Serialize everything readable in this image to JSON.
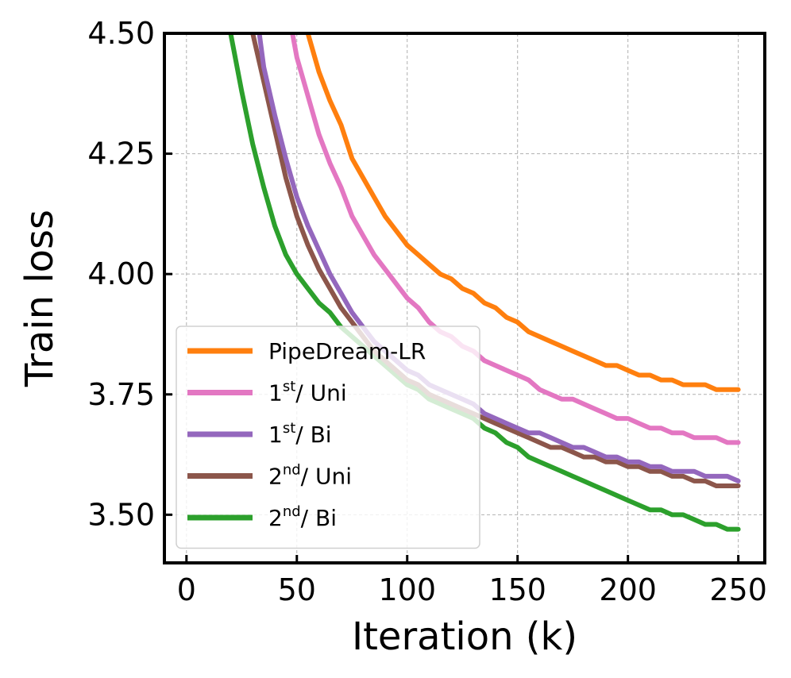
{
  "chart_data": {
    "type": "line",
    "title": "",
    "xlabel": "Iteration (k)",
    "ylabel": "Train loss",
    "xlim": [
      -10,
      262
    ],
    "ylim": [
      3.4,
      4.5
    ],
    "xticks": [
      0,
      50,
      100,
      150,
      200,
      250
    ],
    "xtick_labels": [
      "0",
      "50",
      "100",
      "150",
      "200",
      "250"
    ],
    "yticks": [
      3.5,
      3.75,
      4.0,
      4.25,
      4.5
    ],
    "ytick_labels": [
      "3.50",
      "3.75",
      "4.00",
      "4.25",
      "4.50"
    ],
    "grid": true,
    "legend_position": "lower-left",
    "series": [
      {
        "name": "PipeDream-LR",
        "legend": {
          "base": "PipeDream-LR",
          "sup": "",
          "suffix": ""
        },
        "color": "#ff7f0e",
        "x": [
          55,
          60,
          65,
          70,
          75,
          80,
          85,
          90,
          95,
          100,
          105,
          110,
          115,
          120,
          125,
          130,
          135,
          140,
          145,
          150,
          155,
          160,
          165,
          170,
          175,
          180,
          185,
          190,
          195,
          200,
          205,
          210,
          215,
          220,
          225,
          230,
          235,
          240,
          245,
          250
        ],
        "y": [
          4.5,
          4.42,
          4.36,
          4.31,
          4.24,
          4.2,
          4.16,
          4.12,
          4.09,
          4.06,
          4.04,
          4.02,
          4.0,
          3.99,
          3.97,
          3.96,
          3.94,
          3.93,
          3.91,
          3.9,
          3.88,
          3.87,
          3.86,
          3.85,
          3.84,
          3.83,
          3.82,
          3.81,
          3.81,
          3.8,
          3.79,
          3.79,
          3.78,
          3.78,
          3.77,
          3.77,
          3.77,
          3.76,
          3.76,
          3.76
        ]
      },
      {
        "name": "1st/ Uni",
        "legend": {
          "base": "1",
          "sup": "st",
          "suffix": "/ Uni"
        },
        "color": "#e377c2",
        "x": [
          48,
          50,
          55,
          60,
          65,
          70,
          75,
          80,
          85,
          90,
          95,
          100,
          105,
          110,
          115,
          120,
          125,
          130,
          135,
          140,
          145,
          150,
          155,
          160,
          165,
          170,
          175,
          180,
          185,
          190,
          195,
          200,
          205,
          210,
          215,
          220,
          225,
          230,
          235,
          240,
          245,
          250
        ],
        "y": [
          4.5,
          4.45,
          4.37,
          4.29,
          4.23,
          4.18,
          4.12,
          4.08,
          4.04,
          4.01,
          3.98,
          3.95,
          3.93,
          3.9,
          3.88,
          3.87,
          3.85,
          3.84,
          3.82,
          3.81,
          3.8,
          3.79,
          3.78,
          3.76,
          3.75,
          3.74,
          3.74,
          3.73,
          3.72,
          3.71,
          3.7,
          3.7,
          3.69,
          3.68,
          3.68,
          3.67,
          3.67,
          3.66,
          3.66,
          3.66,
          3.65,
          3.65
        ]
      },
      {
        "name": "1st/ Bi",
        "legend": {
          "base": "1",
          "sup": "st",
          "suffix": "/ Bi"
        },
        "color": "#9467bd",
        "x": [
          33,
          35,
          40,
          45,
          50,
          55,
          60,
          65,
          70,
          75,
          80,
          85,
          90,
          95,
          100,
          105,
          110,
          115,
          120,
          125,
          130,
          135,
          140,
          145,
          150,
          155,
          160,
          165,
          170,
          175,
          180,
          185,
          190,
          195,
          200,
          205,
          210,
          215,
          220,
          225,
          230,
          235,
          240,
          245,
          250
        ],
        "y": [
          4.5,
          4.43,
          4.33,
          4.24,
          4.16,
          4.1,
          4.05,
          4.0,
          3.96,
          3.92,
          3.89,
          3.86,
          3.84,
          3.82,
          3.8,
          3.79,
          3.77,
          3.76,
          3.75,
          3.74,
          3.73,
          3.71,
          3.7,
          3.69,
          3.68,
          3.67,
          3.67,
          3.66,
          3.65,
          3.64,
          3.64,
          3.63,
          3.62,
          3.62,
          3.61,
          3.61,
          3.6,
          3.6,
          3.59,
          3.59,
          3.59,
          3.58,
          3.58,
          3.58,
          3.57
        ]
      },
      {
        "name": "2nd/ Uni",
        "legend": {
          "base": "2",
          "sup": "nd",
          "suffix": "/ Uni"
        },
        "color": "#8c564b",
        "x": [
          30,
          35,
          40,
          45,
          50,
          55,
          60,
          65,
          70,
          75,
          80,
          85,
          90,
          95,
          100,
          105,
          110,
          115,
          120,
          125,
          130,
          135,
          140,
          145,
          150,
          155,
          160,
          165,
          170,
          175,
          180,
          185,
          190,
          195,
          200,
          205,
          210,
          215,
          220,
          225,
          230,
          235,
          240,
          245,
          250
        ],
        "y": [
          4.5,
          4.4,
          4.3,
          4.2,
          4.12,
          4.06,
          4.01,
          3.97,
          3.93,
          3.9,
          3.87,
          3.84,
          3.82,
          3.8,
          3.78,
          3.77,
          3.75,
          3.74,
          3.73,
          3.72,
          3.71,
          3.7,
          3.69,
          3.68,
          3.67,
          3.66,
          3.65,
          3.64,
          3.64,
          3.63,
          3.62,
          3.62,
          3.61,
          3.61,
          3.6,
          3.6,
          3.59,
          3.59,
          3.58,
          3.58,
          3.57,
          3.57,
          3.56,
          3.56,
          3.56
        ]
      },
      {
        "name": "2nd/ Bi",
        "legend": {
          "base": "2",
          "sup": "nd",
          "suffix": "/ Bi"
        },
        "color": "#2ca02c",
        "x": [
          20,
          25,
          30,
          35,
          40,
          45,
          50,
          55,
          60,
          65,
          70,
          75,
          80,
          85,
          90,
          95,
          100,
          105,
          110,
          115,
          120,
          125,
          130,
          135,
          140,
          145,
          150,
          155,
          160,
          165,
          170,
          175,
          180,
          185,
          190,
          195,
          200,
          205,
          210,
          215,
          220,
          225,
          230,
          235,
          240,
          245,
          250
        ],
        "y": [
          4.5,
          4.38,
          4.27,
          4.18,
          4.1,
          4.04,
          4.0,
          3.97,
          3.94,
          3.92,
          3.89,
          3.87,
          3.85,
          3.83,
          3.81,
          3.79,
          3.77,
          3.76,
          3.74,
          3.73,
          3.72,
          3.71,
          3.7,
          3.68,
          3.67,
          3.65,
          3.64,
          3.62,
          3.61,
          3.6,
          3.59,
          3.58,
          3.57,
          3.56,
          3.55,
          3.54,
          3.53,
          3.52,
          3.51,
          3.51,
          3.5,
          3.5,
          3.49,
          3.48,
          3.48,
          3.47,
          3.47
        ]
      }
    ]
  }
}
